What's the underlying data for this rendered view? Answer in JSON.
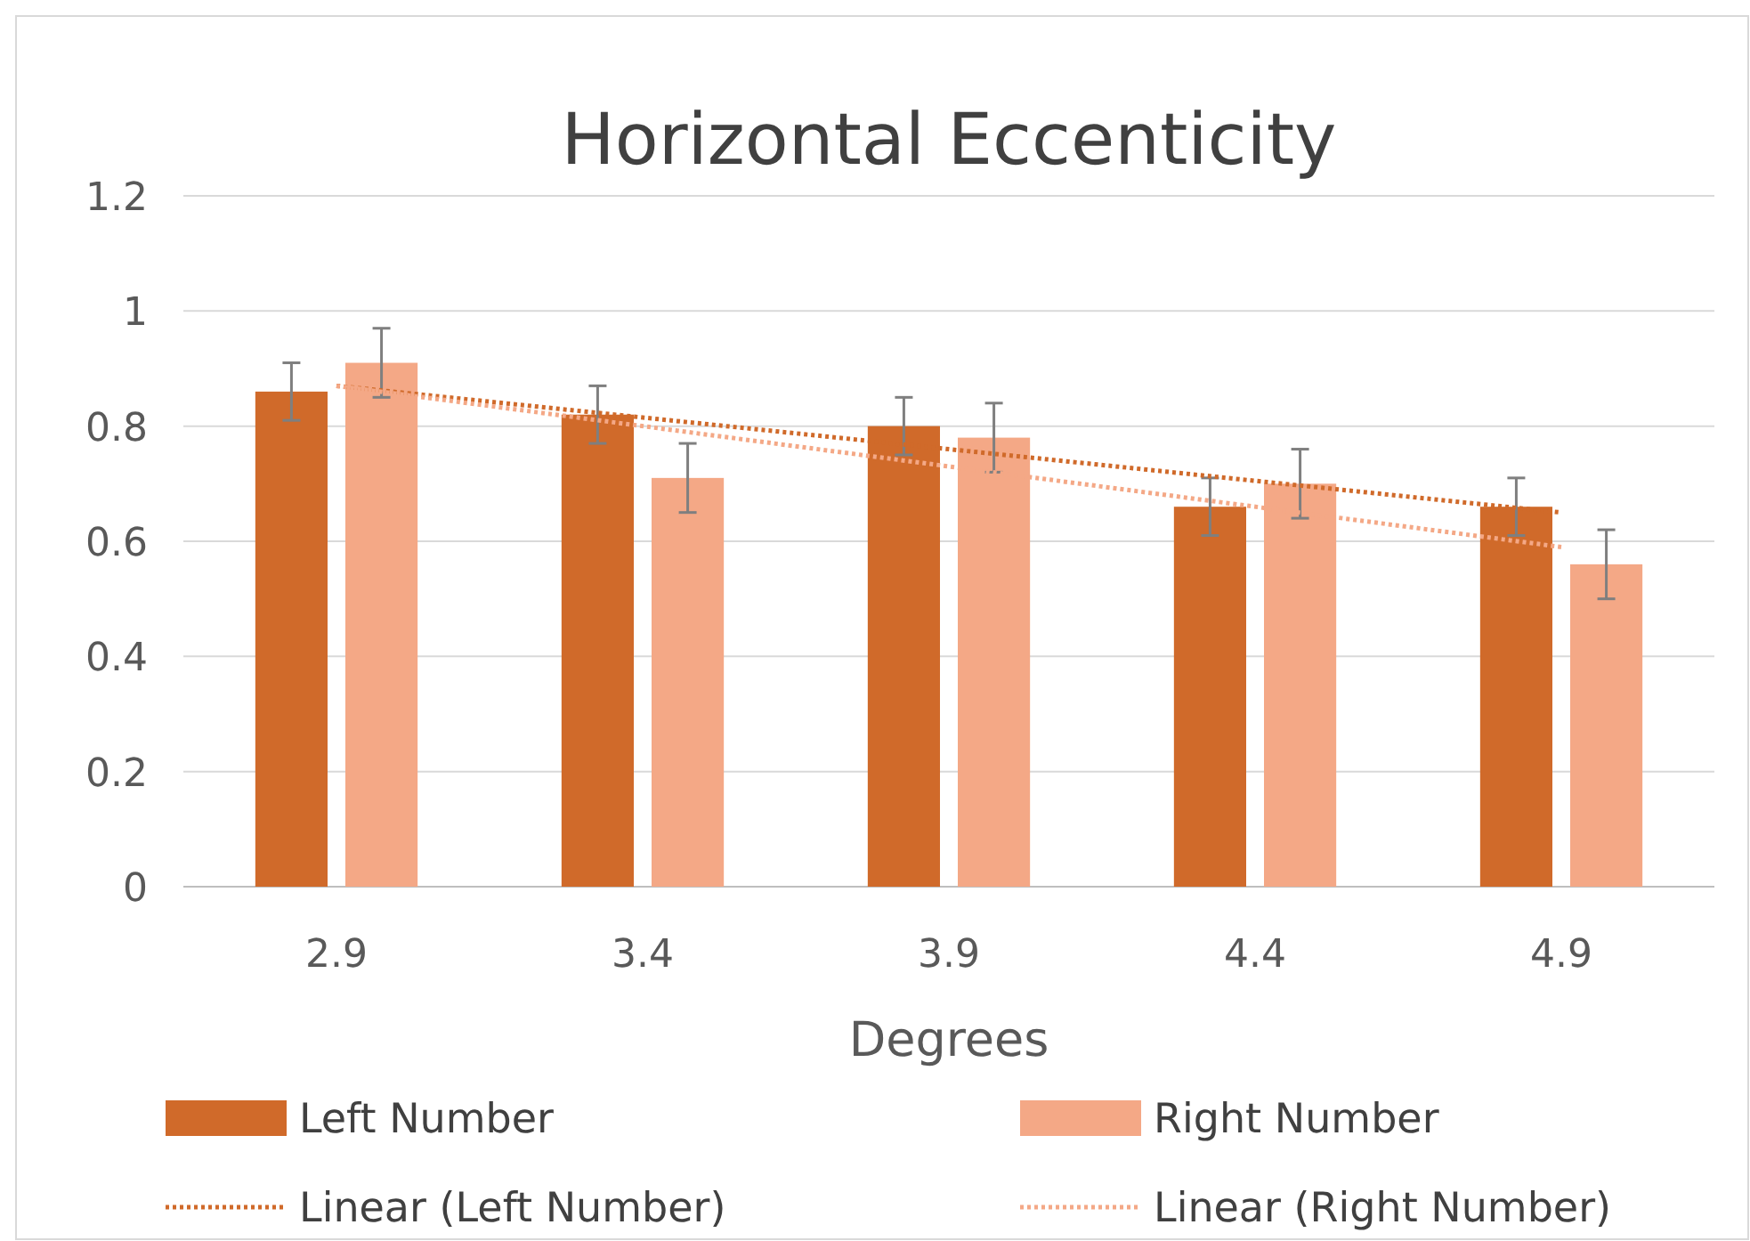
{
  "chart_data": {
    "type": "bar",
    "title": "Horizontal Eccenticity",
    "xlabel": "Degrees",
    "categories": [
      "2.9",
      "3.4",
      "3.9",
      "4.4",
      "4.9"
    ],
    "series": [
      {
        "name": "Left Number",
        "color": "#d06a2a",
        "values": [
          0.86,
          0.82,
          0.8,
          0.66,
          0.66
        ],
        "errors": [
          0.05,
          0.05,
          0.05,
          0.05,
          0.05
        ]
      },
      {
        "name": "Right Number",
        "color": "#f4a886",
        "values": [
          0.91,
          0.71,
          0.78,
          0.7,
          0.56
        ],
        "errors": [
          0.06,
          0.06,
          0.06,
          0.06,
          0.06
        ]
      },
      {
        "name": "Linear (Left Number)",
        "type": "line",
        "color": "#d06a2a",
        "line_style": "dotted",
        "x": [
          "2.9",
          "4.9"
        ],
        "values": [
          0.87,
          0.65
        ]
      },
      {
        "name": "Linear (Right Number)",
        "type": "line",
        "color": "#f4a886",
        "line_style": "dotted",
        "x": [
          "2.9",
          "4.9"
        ],
        "values": [
          0.87,
          0.59
        ]
      }
    ],
    "ylim": [
      0,
      1.2
    ],
    "yticks": [
      0,
      0.2,
      0.4,
      0.6,
      0.8,
      1,
      1.2
    ],
    "grid": "y",
    "legend": "bottom"
  }
}
